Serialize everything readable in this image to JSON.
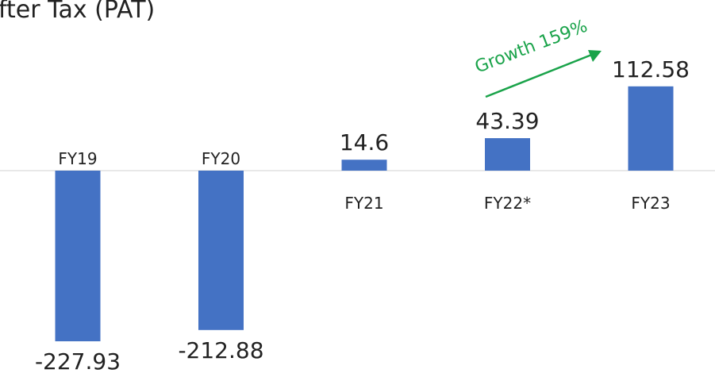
{
  "chart_data": {
    "type": "bar",
    "title": "fter Tax (PAT)",
    "categories": [
      "FY19",
      "FY20",
      "FY21",
      "FY22*",
      "FY23"
    ],
    "values": [
      -227.93,
      -212.88,
      14.6,
      43.39,
      112.58
    ],
    "color": "#4472c4",
    "annotation": "Growth 159%",
    "annotation_color": "#1aa34a"
  }
}
